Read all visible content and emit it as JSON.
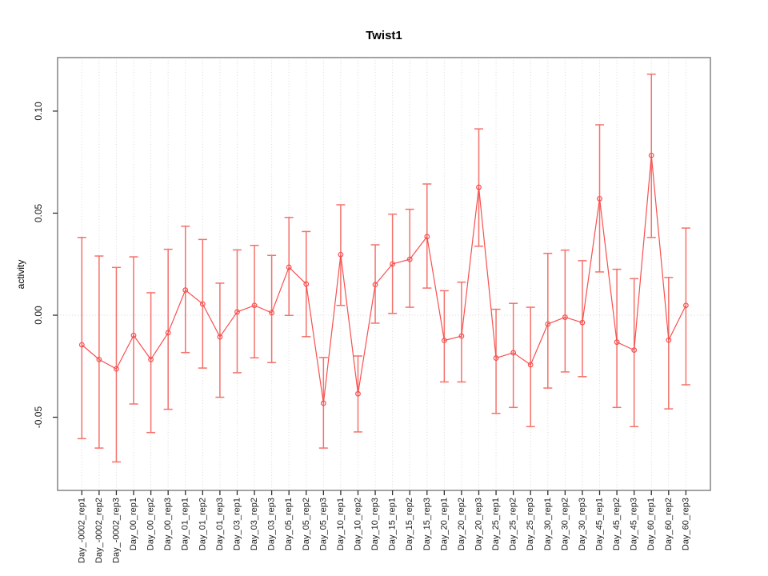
{
  "chart_data": {
    "type": "line",
    "subtype": "points-with-error-bars",
    "title": "Twist1",
    "xlabel": "",
    "ylabel": "activity",
    "categories": [
      "Day_-0002_rep1",
      "Day_-0002_rep2",
      "Day_-0002_rep3",
      "Day_00_rep1",
      "Day_00_rep2",
      "Day_00_rep3",
      "Day_01_rep1",
      "Day_01_rep2",
      "Day_01_rep3",
      "Day_03_rep1",
      "Day_03_rep2",
      "Day_03_rep3",
      "Day_05_rep1",
      "Day_05_rep2",
      "Day_05_rep3",
      "Day_10_rep1",
      "Day_10_rep2",
      "Day_10_rep3",
      "Day_15_rep1",
      "Day_15_rep2",
      "Day_15_rep3",
      "Day_20_rep1",
      "Day_20_rep2",
      "Day_20_rep3",
      "Day_25_rep1",
      "Day_25_rep2",
      "Day_25_rep3",
      "Day_30_rep1",
      "Day_30_rep2",
      "Day_30_rep3",
      "Day_45_rep1",
      "Day_45_rep2",
      "Day_45_rep3",
      "Day_60_rep1",
      "Day_60_rep2",
      "Day_60_rep3"
    ],
    "series": [
      {
        "name": "activity",
        "values": [
          -0.0145,
          -0.0217,
          -0.0263,
          -0.0099,
          -0.0217,
          -0.0086,
          0.0123,
          0.0055,
          -0.0106,
          0.0016,
          0.0048,
          0.0012,
          0.0235,
          0.0153,
          -0.0431,
          0.0297,
          -0.0385,
          0.015,
          0.0251,
          0.0274,
          0.0385,
          -0.0124,
          -0.0102,
          0.0627,
          -0.021,
          -0.0184,
          -0.0243,
          -0.0043,
          -0.001,
          -0.0036,
          0.0571,
          -0.0132,
          -0.0171,
          0.0783,
          -0.0122,
          0.0048
        ],
        "error_high": [
          0.0381,
          0.029,
          0.0234,
          0.0286,
          0.011,
          0.0323,
          0.0436,
          0.0371,
          0.0157,
          0.032,
          0.0342,
          0.0293,
          0.0479,
          0.041,
          -0.0207,
          0.0541,
          -0.02,
          0.0345,
          0.0495,
          0.0519,
          0.0643,
          0.012,
          0.0162,
          0.0913,
          0.0029,
          0.0058,
          0.0039,
          0.0303,
          0.0319,
          0.0267,
          0.0933,
          0.0225,
          0.0179,
          0.1181,
          0.0185,
          0.0427
        ],
        "error_low": [
          -0.0605,
          -0.0651,
          -0.0719,
          -0.0435,
          -0.0575,
          -0.0461,
          -0.0183,
          -0.0259,
          -0.0402,
          -0.0282,
          -0.0209,
          -0.0232,
          -0.0001,
          -0.0105,
          -0.0651,
          0.0048,
          -0.0572,
          -0.0039,
          0.0009,
          0.0039,
          0.0133,
          -0.0327,
          -0.0327,
          0.0338,
          -0.0481,
          -0.0452,
          -0.0546,
          -0.0357,
          -0.0278,
          -0.0301,
          0.0212,
          -0.0452,
          -0.0546,
          0.0381,
          -0.0459,
          -0.0341
        ]
      }
    ],
    "y_ticks": [
      0.1,
      0.05,
      0.0,
      -0.05
    ],
    "y_tick_labels": [
      "0.10",
      "0.05",
      "0.00",
      "-0.05"
    ],
    "ylim": [
      -0.085,
      0.125
    ],
    "x_tick_label_rotation": -90,
    "grid": {
      "vertical": "dotted",
      "zero_line": "dotted",
      "horizontal_other": "off"
    },
    "legend_position": "none",
    "marker": "open-circle",
    "colors": {
      "series": "#f84f4f",
      "error_bar": "#f4716b",
      "grid": "#d9d9d9",
      "zero_line": "#d4d4d4",
      "box_border": "#8c8c8c",
      "tick": "#303030",
      "text": "#1a1a1a",
      "background": "#ffffff"
    }
  }
}
